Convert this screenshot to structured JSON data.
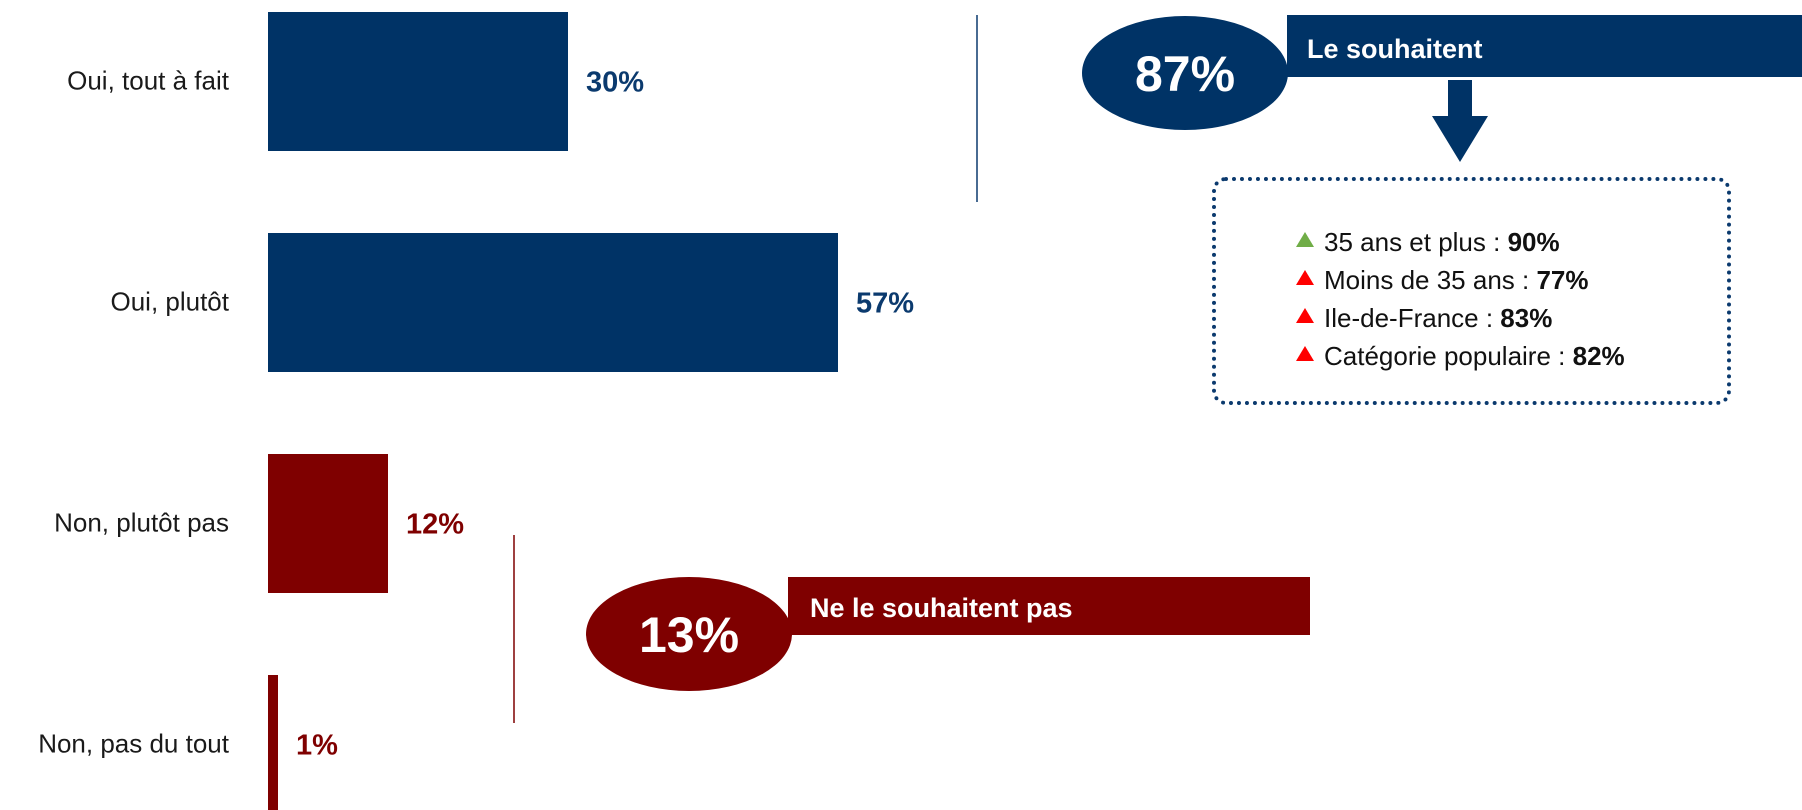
{
  "chart_data": {
    "type": "bar",
    "orientation": "horizontal",
    "categories": [
      "Oui, tout à fait",
      "Oui, plutôt",
      "Non, plutôt pas",
      "Non, pas du tout"
    ],
    "values": [
      30,
      57,
      12,
      1
    ],
    "value_labels": [
      "30%",
      "57%",
      "12%",
      "1%"
    ],
    "xlim": [
      0,
      100
    ],
    "grid": false,
    "colors": {
      "positive": "#003366",
      "negative": "#7f0000",
      "label_positive": "#0b3a6e",
      "label_negative": "#7f0000"
    },
    "groups": [
      {
        "pct": "87%",
        "label": "Le souhaitent",
        "color": "#003366",
        "categories": [
          0,
          1
        ]
      },
      {
        "pct": "13%",
        "label": "Ne le souhaitent pas",
        "color": "#7f0000",
        "categories": [
          2,
          3
        ]
      }
    ]
  },
  "details": {
    "items": [
      {
        "label": "35 ans et plus : ",
        "value": "90%",
        "trend": "up",
        "color": "#70ad47"
      },
      {
        "label": "Moins de 35 ans : ",
        "value": "77%",
        "trend": "up",
        "color": "#ff0000"
      },
      {
        "label": "Ile-de-France : ",
        "value": "83%",
        "trend": "up",
        "color": "#ff0000"
      },
      {
        "label": "Catégorie populaire : ",
        "value": "82%",
        "trend": "up",
        "color": "#ff0000"
      }
    ]
  }
}
